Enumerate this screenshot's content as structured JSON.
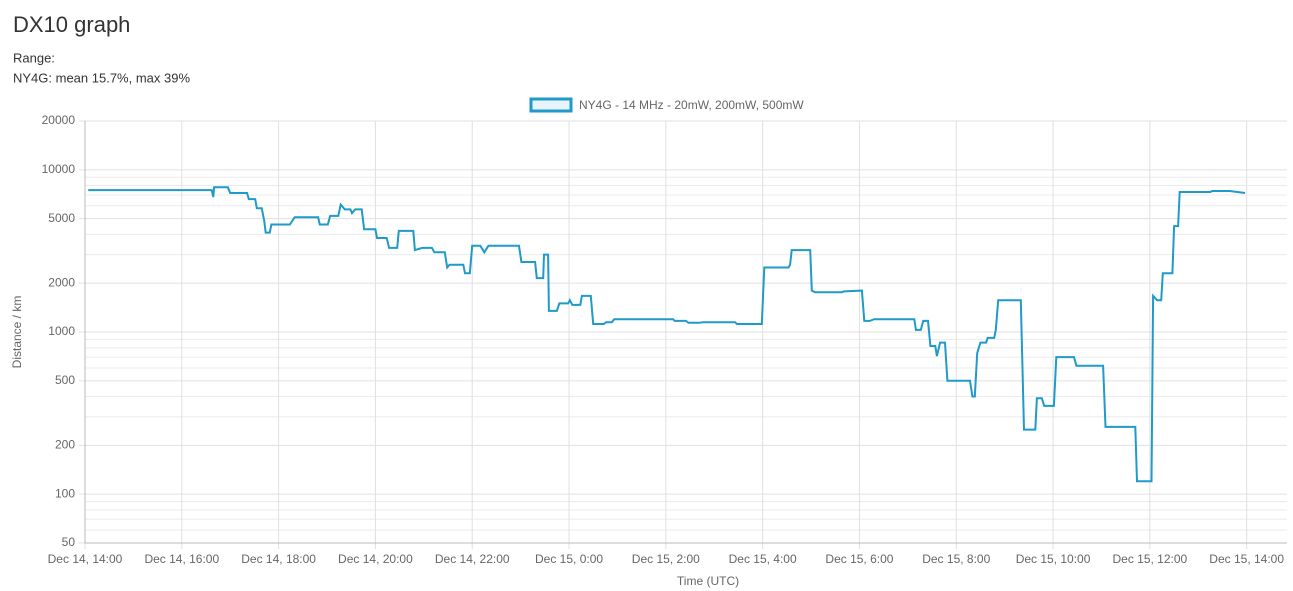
{
  "header": {
    "title": "DX10 graph",
    "range": "Range:",
    "summary": "NY4G: mean 15.7%, max 39%"
  },
  "chart_data": {
    "type": "line",
    "x_label": "Time (UTC)",
    "y_label": "Distance / km",
    "log_y": true,
    "grid": true,
    "legend": "top",
    "xlim": [
      "Dec 14, 14:00",
      "Dec 15, 14:50"
    ],
    "xticks": [
      "Dec 14, 14:00",
      "Dec 14, 16:00",
      "Dec 14, 18:00",
      "Dec 14, 20:00",
      "Dec 14, 22:00",
      "Dec 15, 0:00",
      "Dec 15, 2:00",
      "Dec 15, 4:00",
      "Dec 15, 6:00",
      "Dec 15, 8:00",
      "Dec 15, 10:00",
      "Dec 15, 12:00",
      "Dec 15, 14:00"
    ],
    "ylim": [
      50,
      20000
    ],
    "yticks": [
      50,
      100,
      200,
      500,
      1000,
      2000,
      5000,
      10000,
      20000
    ],
    "minor_yticks": [
      60,
      70,
      80,
      90,
      300,
      400,
      600,
      700,
      800,
      900,
      3000,
      4000,
      6000,
      7000,
      8000,
      9000
    ],
    "x": [
      "Dec 14, 14:04",
      "Dec 14, 16:23",
      "Dec 14, 16:37",
      "Dec 14, 16:39",
      "Dec 14, 16:40",
      "Dec 14, 16:57",
      "Dec 14, 17:00",
      "Dec 14, 17:21",
      "Dec 14, 17:23",
      "Dec 14, 17:31",
      "Dec 14, 17:33",
      "Dec 14, 17:39",
      "Dec 14, 17:42",
      "Dec 14, 17:44",
      "Dec 14, 17:49",
      "Dec 14, 17:51",
      "Dec 14, 18:14",
      "Dec 14, 18:20",
      "Dec 14, 18:49",
      "Dec 14, 18:51",
      "Dec 14, 19:01",
      "Dec 14, 19:04",
      "Dec 14, 19:14",
      "Dec 14, 19:17",
      "Dec 14, 19:22",
      "Dec 14, 19:29",
      "Dec 14, 19:31",
      "Dec 14, 19:35",
      "Dec 14, 19:43",
      "Dec 14, 19:46",
      "Dec 14, 20:00",
      "Dec 14, 20:02",
      "Dec 14, 20:14",
      "Dec 14, 20:17",
      "Dec 14, 20:27",
      "Dec 14, 20:29",
      "Dec 14, 20:47",
      "Dec 14, 20:49",
      "Dec 14, 20:58",
      "Dec 14, 21:10",
      "Dec 14, 21:13",
      "Dec 14, 21:26",
      "Dec 14, 21:29",
      "Dec 14, 21:32",
      "Dec 14, 21:49",
      "Dec 14, 21:51",
      "Dec 14, 21:57",
      "Dec 14, 22:00",
      "Dec 14, 22:10",
      "Dec 14, 22:15",
      "Dec 14, 22:20",
      "Dec 14, 22:58",
      "Dec 14, 23:01",
      "Dec 14, 23:18",
      "Dec 14, 23:20",
      "Dec 14, 23:28",
      "Dec 14, 23:29",
      "Dec 14, 23:34",
      "Dec 14, 23:35",
      "Dec 14, 23:45",
      "Dec 14, 23:48",
      "Dec 14, 23:59",
      "Dec 15, 0:01",
      "Dec 15, 0:04",
      "Dec 15, 0:14",
      "Dec 15, 0:16",
      "Dec 15, 0:27",
      "Dec 15, 0:30",
      "Dec 15, 0:43",
      "Dec 15, 0:46",
      "Dec 15, 0:53",
      "Dec 15, 0:56",
      "Dec 15, 2:09",
      "Dec 15, 2:11",
      "Dec 15, 2:25",
      "Dec 15, 2:28",
      "Dec 15, 2:42",
      "Dec 15, 2:46",
      "Dec 15, 3:26",
      "Dec 15, 3:28",
      "Dec 15, 3:59",
      "Dec 15, 4:02",
      "Dec 15, 4:32",
      "Dec 15, 4:34",
      "Dec 15, 4:36",
      "Dec 15, 4:59",
      "Dec 15, 5:01",
      "Dec 15, 5:05",
      "Dec 15, 5:38",
      "Dec 15, 5:41",
      "Dec 15, 6:03",
      "Dec 15, 6:06",
      "Dec 15, 6:13",
      "Dec 15, 6:18",
      "Dec 15, 7:08",
      "Dec 15, 7:10",
      "Dec 15, 7:16",
      "Dec 15, 7:19",
      "Dec 15, 7:25",
      "Dec 15, 7:28",
      "Dec 15, 7:34",
      "Dec 15, 7:36",
      "Dec 15, 7:40",
      "Dec 15, 7:46",
      "Dec 15, 7:49",
      "Dec 15, 8:17",
      "Dec 15, 8:20",
      "Dec 15, 8:23",
      "Dec 15, 8:26",
      "Dec 15, 8:30",
      "Dec 15, 8:37",
      "Dec 15, 8:39",
      "Dec 15, 8:47",
      "Dec 15, 8:49",
      "Dec 15, 8:52",
      "Dec 15, 9:20",
      "Dec 15, 9:24",
      "Dec 15, 9:38",
      "Dec 15, 9:40",
      "Dec 15, 9:46",
      "Dec 15, 9:49",
      "Dec 15, 10:01",
      "Dec 15, 10:04",
      "Dec 15, 10:26",
      "Dec 15, 10:29",
      "Dec 15, 11:02",
      "Dec 15, 11:05",
      "Dec 15, 11:42",
      "Dec 15, 11:44",
      "Dec 15, 12:02",
      "Dec 15, 12:04",
      "Dec 15, 12:09",
      "Dec 15, 12:14",
      "Dec 15, 12:16",
      "Dec 15, 12:28",
      "Dec 15, 12:30",
      "Dec 15, 12:35",
      "Dec 15, 12:37",
      "Dec 15, 13:15",
      "Dec 15, 13:17",
      "Dec 15, 13:39",
      "Dec 15, 13:58"
    ],
    "series": [
      {
        "name": "NY4G - 14 MHz - 20mW, 200mW, 500mW",
        "color": "#1f9ac9",
        "values": [
          7500,
          7500,
          7500,
          6800,
          7800,
          7800,
          7200,
          7200,
          6600,
          6600,
          5800,
          5800,
          4900,
          4100,
          4100,
          4600,
          4600,
          5100,
          5100,
          4600,
          4600,
          5200,
          5200,
          6100,
          5700,
          5700,
          5400,
          5700,
          5700,
          4300,
          4300,
          3800,
          3800,
          3300,
          3300,
          4200,
          4200,
          3200,
          3300,
          3300,
          3100,
          3100,
          2500,
          2600,
          2600,
          2300,
          2300,
          3400,
          3400,
          3100,
          3400,
          3400,
          2700,
          2700,
          2150,
          2150,
          3000,
          3000,
          1350,
          1350,
          1500,
          1500,
          1570,
          1470,
          1470,
          1670,
          1670,
          1120,
          1120,
          1150,
          1150,
          1200,
          1200,
          1170,
          1170,
          1140,
          1140,
          1150,
          1150,
          1120,
          1120,
          2500,
          2500,
          2600,
          3200,
          3200,
          1800,
          1760,
          1760,
          1780,
          1800,
          1170,
          1170,
          1200,
          1200,
          1030,
          1030,
          1170,
          1170,
          820,
          820,
          710,
          860,
          860,
          500,
          500,
          400,
          400,
          740,
          860,
          860,
          920,
          920,
          1030,
          1570,
          1570,
          250,
          250,
          390,
          390,
          350,
          350,
          700,
          700,
          620,
          620,
          260,
          260,
          120,
          120,
          1670,
          1570,
          1570,
          2300,
          2300,
          4500,
          4500,
          7300,
          7300,
          7400,
          7400,
          7200
        ]
      }
    ]
  }
}
